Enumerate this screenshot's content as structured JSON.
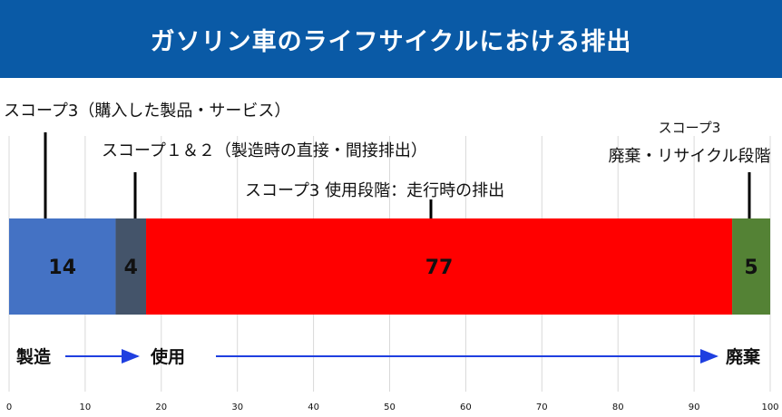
{
  "title": "ガソリン車のライフサイクルにおける排出",
  "colors": {
    "title_bg": "#0a5aa6",
    "flow": "#1f3fe0",
    "grid": "#d9d9d9"
  },
  "chart_data": {
    "type": "bar",
    "orientation": "horizontal-stacked",
    "xlim": [
      0,
      100
    ],
    "xticks": [
      0,
      10,
      20,
      30,
      40,
      50,
      60,
      70,
      80,
      90,
      100
    ],
    "grid": true,
    "segments": [
      {
        "value": 14,
        "label": "14",
        "color": "#4472c4"
      },
      {
        "value": 4,
        "label": "4",
        "color": "#44546a"
      },
      {
        "value": 77,
        "label": "77",
        "color": "#ff0000"
      },
      {
        "value": 5,
        "label": "5",
        "color": "#548235"
      }
    ],
    "annotations": [
      {
        "segment": 0,
        "lines": [
          "スコープ3（購入した製品・サービス）"
        ]
      },
      {
        "segment": 1,
        "lines": [
          "スコープ１＆２（製造時の直接・間接排出）"
        ]
      },
      {
        "segment": 2,
        "lines": [
          "スコープ3 使用段階：走行時の排出"
        ]
      },
      {
        "segment": 3,
        "lines": [
          "スコープ3",
          "廃棄・リサイクル段階"
        ]
      }
    ],
    "stages": [
      {
        "label": "製造",
        "x": 1
      },
      {
        "label": "使用",
        "x": 18.5
      },
      {
        "label": "廃棄",
        "x": 94
      }
    ]
  }
}
